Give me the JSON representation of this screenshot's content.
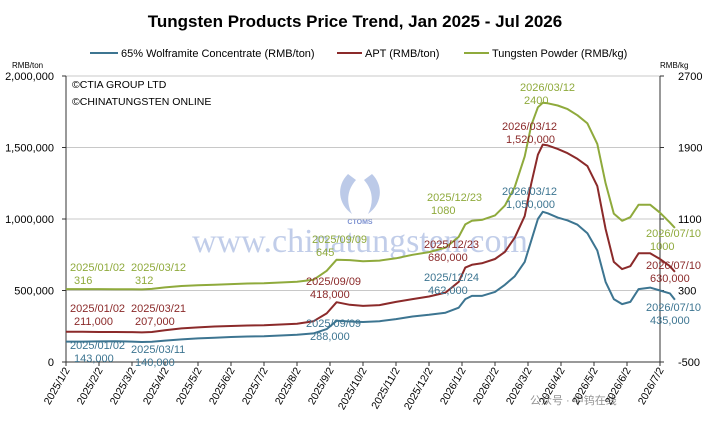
{
  "chart_data": {
    "type": "line",
    "title": "Tungsten Products Price Trend, Jan 2025 - Jul 2026",
    "left_axis_unit": "RMB/ton",
    "right_axis_unit": "RMB/kg",
    "left_ylim": [
      0,
      2000000
    ],
    "right_ylim": [
      -500,
      2700
    ],
    "left_yticks": [
      "0",
      "500,000",
      "1,000,000",
      "1,500,000",
      "2,000,000"
    ],
    "right_yticks": [
      "-500",
      "300",
      "1100",
      "1900",
      "2700"
    ],
    "x_categories": [
      "2025/1/2",
      "2025/2/2",
      "2025/3/2",
      "2025/4/2",
      "2025/5/2",
      "2025/6/2",
      "2025/7/2",
      "2025/8/2",
      "2025/9/2",
      "2025/10/2",
      "2025/11/2",
      "2025/12/2",
      "2026/1/2",
      "2026/2/2",
      "2026/3/2",
      "2026/4/2",
      "2026/5/2",
      "2026/6/2",
      "2026/7/2"
    ],
    "grid": "horizontal",
    "legend_position": "top",
    "copyright": [
      "©CTIA GROUP LTD",
      "©CHINATUNGSTEN ONLINE"
    ],
    "series": [
      {
        "name": "65% Wolframite Concentrate (RMB/ton)",
        "color": "#3d7591",
        "axis": "left",
        "points": [
          [
            0,
            143000
          ],
          [
            0.5,
            143000
          ],
          [
            1,
            144000
          ],
          [
            1.5,
            145000
          ],
          [
            2,
            143000
          ],
          [
            2.3,
            140000
          ],
          [
            2.6,
            142000
          ],
          [
            3,
            150000
          ],
          [
            3.5,
            158000
          ],
          [
            4,
            165000
          ],
          [
            4.5,
            170000
          ],
          [
            5,
            175000
          ],
          [
            5.5,
            178000
          ],
          [
            6,
            180000
          ],
          [
            6.5,
            185000
          ],
          [
            7,
            190000
          ],
          [
            7.5,
            200000
          ],
          [
            7.9,
            230000
          ],
          [
            8.2,
            288000
          ],
          [
            8.6,
            283000
          ],
          [
            9,
            280000
          ],
          [
            9.5,
            285000
          ],
          [
            10,
            300000
          ],
          [
            10.5,
            318000
          ],
          [
            11,
            330000
          ],
          [
            11.5,
            345000
          ],
          [
            11.9,
            380000
          ],
          [
            12.1,
            440000
          ],
          [
            12.3,
            462000
          ],
          [
            12.6,
            462000
          ],
          [
            13,
            490000
          ],
          [
            13.3,
            540000
          ],
          [
            13.6,
            600000
          ],
          [
            13.9,
            700000
          ],
          [
            14.1,
            850000
          ],
          [
            14.3,
            1000000
          ],
          [
            14.45,
            1050000
          ],
          [
            14.6,
            1040000
          ],
          [
            14.9,
            1010000
          ],
          [
            15.2,
            990000
          ],
          [
            15.5,
            960000
          ],
          [
            15.8,
            900000
          ],
          [
            16.1,
            780000
          ],
          [
            16.35,
            560000
          ],
          [
            16.6,
            440000
          ],
          [
            16.85,
            405000
          ],
          [
            17.1,
            420000
          ],
          [
            17.35,
            510000
          ],
          [
            17.7,
            520000
          ],
          [
            18,
            500000
          ],
          [
            18.3,
            480000
          ],
          [
            18.45,
            435000
          ]
        ]
      },
      {
        "name": "APT (RMB/ton)",
        "color": "#8b2a2a",
        "axis": "left",
        "points": [
          [
            0,
            211000
          ],
          [
            0.5,
            211000
          ],
          [
            1,
            210000
          ],
          [
            1.5,
            210000
          ],
          [
            2,
            209000
          ],
          [
            2.3,
            207000
          ],
          [
            2.6,
            210000
          ],
          [
            3,
            222000
          ],
          [
            3.5,
            235000
          ],
          [
            4,
            242000
          ],
          [
            4.5,
            248000
          ],
          [
            5,
            252000
          ],
          [
            5.5,
            255000
          ],
          [
            6,
            257000
          ],
          [
            6.5,
            262000
          ],
          [
            7,
            268000
          ],
          [
            7.5,
            285000
          ],
          [
            7.9,
            340000
          ],
          [
            8.2,
            418000
          ],
          [
            8.6,
            400000
          ],
          [
            9,
            392000
          ],
          [
            9.5,
            398000
          ],
          [
            10,
            420000
          ],
          [
            10.5,
            440000
          ],
          [
            11,
            458000
          ],
          [
            11.5,
            485000
          ],
          [
            11.9,
            560000
          ],
          [
            12.1,
            660000
          ],
          [
            12.3,
            680000
          ],
          [
            12.6,
            690000
          ],
          [
            13,
            720000
          ],
          [
            13.3,
            770000
          ],
          [
            13.6,
            870000
          ],
          [
            13.9,
            1020000
          ],
          [
            14.1,
            1250000
          ],
          [
            14.3,
            1450000
          ],
          [
            14.45,
            1520000
          ],
          [
            14.6,
            1515000
          ],
          [
            14.9,
            1490000
          ],
          [
            15.2,
            1460000
          ],
          [
            15.5,
            1420000
          ],
          [
            15.8,
            1370000
          ],
          [
            16.1,
            1230000
          ],
          [
            16.35,
            930000
          ],
          [
            16.6,
            700000
          ],
          [
            16.85,
            650000
          ],
          [
            17.1,
            670000
          ],
          [
            17.35,
            760000
          ],
          [
            17.7,
            760000
          ],
          [
            18,
            720000
          ],
          [
            18.3,
            670000
          ],
          [
            18.45,
            630000
          ]
        ]
      },
      {
        "name": "Tungsten Powder (RMB/kg)",
        "color": "#8faa3c",
        "axis": "right",
        "points": [
          [
            0,
            316
          ],
          [
            0.5,
            316
          ],
          [
            1,
            316
          ],
          [
            1.5,
            315
          ],
          [
            2,
            314
          ],
          [
            2.3,
            312
          ],
          [
            2.6,
            318
          ],
          [
            3,
            335
          ],
          [
            3.5,
            350
          ],
          [
            4,
            358
          ],
          [
            4.5,
            365
          ],
          [
            5,
            372
          ],
          [
            5.5,
            378
          ],
          [
            6,
            382
          ],
          [
            6.5,
            390
          ],
          [
            7,
            398
          ],
          [
            7.5,
            420
          ],
          [
            7.9,
            520
          ],
          [
            8.2,
            645
          ],
          [
            8.6,
            640
          ],
          [
            9,
            628
          ],
          [
            9.5,
            635
          ],
          [
            10,
            660
          ],
          [
            10.5,
            700
          ],
          [
            11,
            730
          ],
          [
            11.5,
            780
          ],
          [
            11.9,
            900
          ],
          [
            12.1,
            1040
          ],
          [
            12.3,
            1080
          ],
          [
            12.6,
            1090
          ],
          [
            13,
            1140
          ],
          [
            13.3,
            1250
          ],
          [
            13.6,
            1460
          ],
          [
            13.9,
            1800
          ],
          [
            14.1,
            2150
          ],
          [
            14.3,
            2350
          ],
          [
            14.45,
            2400
          ],
          [
            14.6,
            2395
          ],
          [
            14.9,
            2370
          ],
          [
            15.2,
            2330
          ],
          [
            15.5,
            2260
          ],
          [
            15.8,
            2170
          ],
          [
            16.1,
            1940
          ],
          [
            16.35,
            1500
          ],
          [
            16.6,
            1160
          ],
          [
            16.85,
            1080
          ],
          [
            17.1,
            1120
          ],
          [
            17.35,
            1260
          ],
          [
            17.7,
            1260
          ],
          [
            18,
            1170
          ],
          [
            18.3,
            1060
          ],
          [
            18.45,
            1000
          ]
        ]
      }
    ],
    "annotations": [
      {
        "date": "2025/01/02",
        "value": "316",
        "series": 2
      },
      {
        "date": "2025/03/12",
        "value": "312",
        "series": 2
      },
      {
        "date": "2025/09/09",
        "value": "645",
        "series": 2
      },
      {
        "date": "2025/12/23",
        "value": "1080",
        "series": 2
      },
      {
        "date": "2026/03/12",
        "value": "2400",
        "series": 2
      },
      {
        "date": "2026/07/10",
        "value": "1000",
        "series": 2
      },
      {
        "date": "2025/01/02",
        "value": "211,000",
        "series": 1
      },
      {
        "date": "2025/03/21",
        "value": "207,000",
        "series": 1
      },
      {
        "date": "2025/09/09",
        "value": "418,000",
        "series": 1
      },
      {
        "date": "2025/12/23",
        "value": "680,000",
        "series": 1
      },
      {
        "date": "2026/03/12",
        "value": "1,520,000",
        "series": 1
      },
      {
        "date": "2026/07/10",
        "value": "630,000",
        "series": 1
      },
      {
        "date": "2025/01/02",
        "value": "143,000",
        "series": 0
      },
      {
        "date": "2025/03/11",
        "value": "140,000",
        "series": 0
      },
      {
        "date": "2025/09/09",
        "value": "288,000",
        "series": 0
      },
      {
        "date": "2025/12/24",
        "value": "462,000",
        "series": 0
      },
      {
        "date": "2026/03/12",
        "value": "1,050,000",
        "series": 0
      },
      {
        "date": "2026/07/10",
        "value": "435,000",
        "series": 0
      }
    ],
    "watermark": {
      "text": "www.chinatungsten.com",
      "logo_text": "CTOMS"
    },
    "footer_watermark": "公众号 · 中钨在线"
  }
}
